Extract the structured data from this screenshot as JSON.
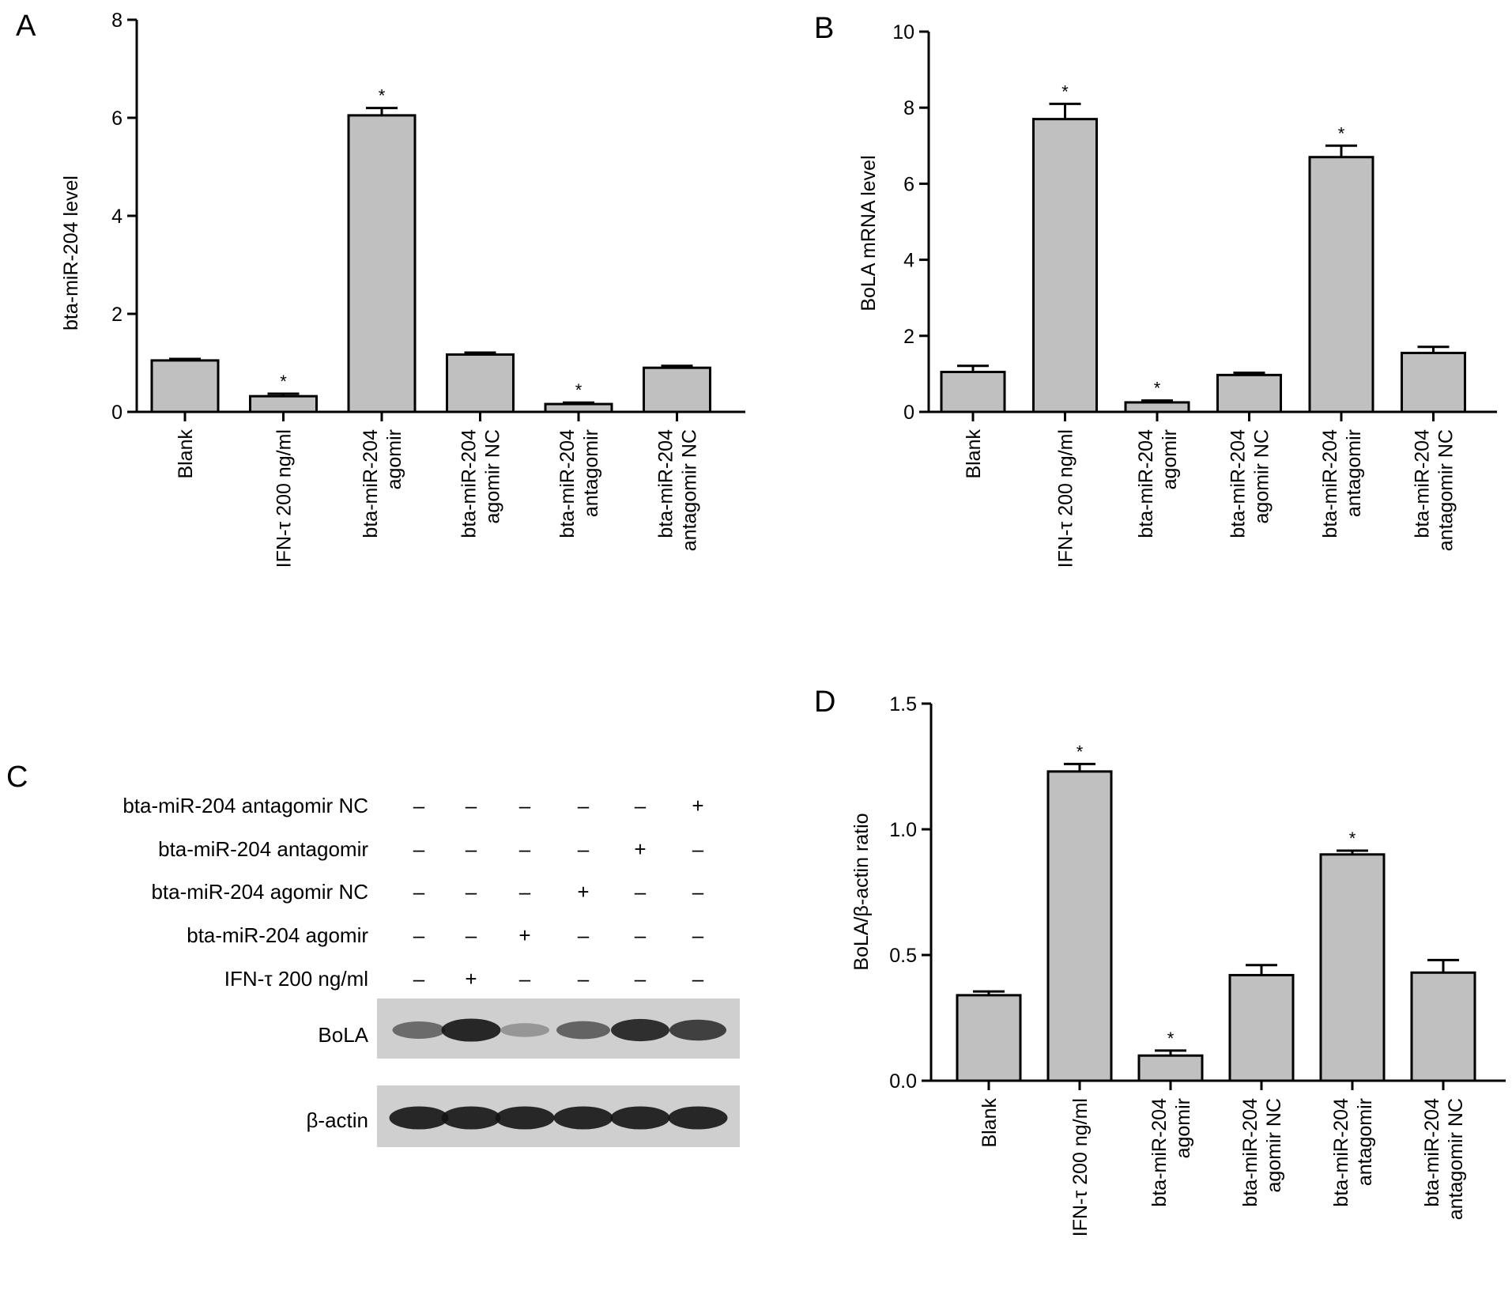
{
  "panels": {
    "A": "A",
    "B": "B",
    "C": "C",
    "D": "D"
  },
  "chart_data": [
    {
      "panel": "A",
      "type": "bar",
      "ylabel": "bta-miR-204  level",
      "ylim": [
        0,
        8
      ],
      "yticks": [
        "0",
        "2",
        "4",
        "6",
        "8"
      ],
      "categories": [
        [
          "Blank"
        ],
        [
          "IFN-τ 200 ng/ml"
        ],
        [
          "bta-miR-204",
          "agomir"
        ],
        [
          "bta-miR-204",
          "agomir NC"
        ],
        [
          "bta-miR-204",
          "antagomir"
        ],
        [
          "bta-miR-204",
          "antagomir NC"
        ]
      ],
      "values": [
        1.05,
        0.32,
        6.05,
        1.17,
        0.16,
        0.9
      ],
      "errors": [
        0.03,
        0.05,
        0.15,
        0.04,
        0.03,
        0.04
      ],
      "significant": [
        "",
        "*",
        "*",
        "",
        "*",
        ""
      ],
      "bar_color": "#c0c0c0"
    },
    {
      "panel": "B",
      "type": "bar",
      "ylabel": "BoLA mRNA level",
      "ylim": [
        0,
        10
      ],
      "yticks": [
        "0",
        "2",
        "4",
        "6",
        "8",
        "10"
      ],
      "categories": [
        [
          "Blank"
        ],
        [
          "IFN-τ 200 ng/ml"
        ],
        [
          "bta-miR-204",
          "agomir"
        ],
        [
          "bta-miR-204",
          "agomir NC"
        ],
        [
          "bta-miR-204",
          "antagomir"
        ],
        [
          "bta-miR-204",
          "antagomir NC"
        ]
      ],
      "values": [
        1.05,
        7.7,
        0.25,
        0.97,
        6.7,
        1.55
      ],
      "errors": [
        0.16,
        0.4,
        0.05,
        0.06,
        0.3,
        0.16
      ],
      "significant": [
        "",
        "*",
        "*",
        "",
        "*",
        ""
      ],
      "bar_color": "#c0c0c0"
    },
    {
      "panel": "D",
      "type": "bar",
      "ylabel": "BoLA/β-actin ratio",
      "ylim": [
        0,
        1.5
      ],
      "yticks": [
        "0.0",
        "0.5",
        "1.0",
        "1.5"
      ],
      "categories": [
        [
          "Blank"
        ],
        [
          "IFN-τ 200 ng/ml"
        ],
        [
          "bta-miR-204",
          "agomir"
        ],
        [
          "bta-miR-204",
          "agomir NC"
        ],
        [
          "bta-miR-204",
          "antagomir"
        ],
        [
          "bta-miR-204",
          "antagomir NC"
        ]
      ],
      "values": [
        0.34,
        1.23,
        0.1,
        0.42,
        0.9,
        0.43
      ],
      "errors": [
        0.015,
        0.03,
        0.02,
        0.04,
        0.015,
        0.05
      ],
      "significant": [
        "",
        "*",
        "*",
        "",
        "*",
        ""
      ],
      "bar_color": "#c0c0c0"
    }
  ],
  "blot": {
    "rows": [
      {
        "label": "bta-miR-204 antagomir NC",
        "signs": [
          "–",
          "–",
          "–",
          "–",
          "–",
          "+"
        ]
      },
      {
        "label": "bta-miR-204 antagomir",
        "signs": [
          "–",
          "–",
          "–",
          "–",
          "+",
          "–"
        ]
      },
      {
        "label": "bta-miR-204 agomir NC",
        "signs": [
          "–",
          "–",
          "–",
          "+",
          "–",
          "–"
        ]
      },
      {
        "label": "bta-miR-204 agomir",
        "signs": [
          "–",
          "–",
          "+",
          "–",
          "–",
          "–"
        ]
      },
      {
        "label": "IFN-τ 200 ng/ml",
        "signs": [
          "–",
          "+",
          "–",
          "–",
          "–",
          "–"
        ]
      }
    ],
    "bands": [
      {
        "label": "BoLA",
        "intensity": [
          0.55,
          0.95,
          0.3,
          0.6,
          0.9,
          0.8
        ]
      },
      {
        "label": "β-actin",
        "intensity": [
          0.95,
          0.95,
          0.95,
          0.95,
          0.95,
          0.95
        ]
      }
    ]
  }
}
